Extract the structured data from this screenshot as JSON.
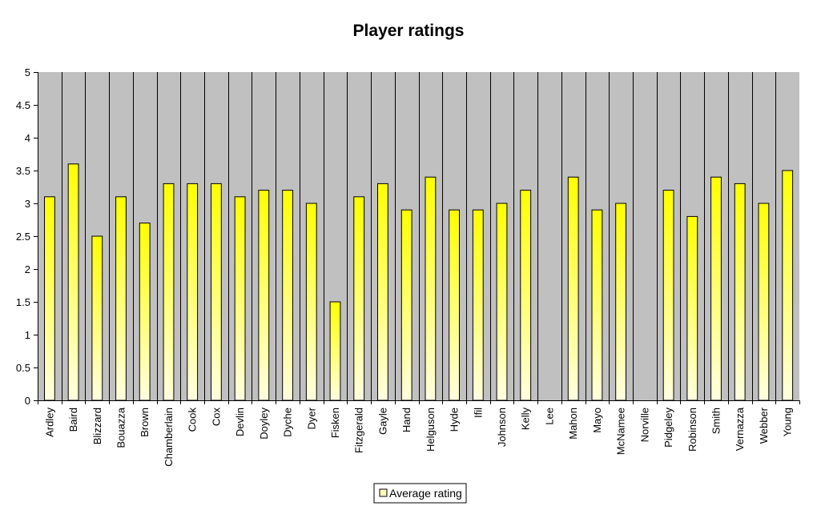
{
  "chart_data": {
    "type": "bar",
    "title": "Player ratings",
    "xlabel": "",
    "ylabel": "",
    "ylim": [
      0,
      5
    ],
    "ytick_step": 0.5,
    "yticks": [
      "0",
      "0.5",
      "1",
      "1.5",
      "2",
      "2.5",
      "3",
      "3.5",
      "4",
      "4.5",
      "5"
    ],
    "grid": false,
    "legend_position": "bottom",
    "categories": [
      "Ardley",
      "Baird",
      "Blizzard",
      "Bouazza",
      "Brown",
      "Chamberlain",
      "Cook",
      "Cox",
      "Devlin",
      "Doyley",
      "Dyche",
      "Dyer",
      "Fisken",
      "Fitzgerald",
      "Gayle",
      "Hand",
      "Helguson",
      "Hyde",
      "Ifil",
      "Johnson",
      "Kelly",
      "Lee",
      "Mahon",
      "Mayo",
      "McNamee",
      "Norville",
      "Pidgeley",
      "Robinson",
      "Smith",
      "Vernazza",
      "Webber",
      "Young"
    ],
    "series": [
      {
        "name": "Average rating",
        "values": [
          3.1,
          3.6,
          2.5,
          3.1,
          2.7,
          3.3,
          3.3,
          3.3,
          3.1,
          3.2,
          3.2,
          3.0,
          1.5,
          3.1,
          3.3,
          2.9,
          3.4,
          2.9,
          2.9,
          3.0,
          3.2,
          null,
          3.4,
          2.9,
          3.0,
          null,
          3.2,
          2.8,
          3.4,
          3.3,
          3.0,
          3.5
        ]
      }
    ],
    "colors": {
      "plot_background": "#c0c0c0",
      "bar_top": "#ffff00",
      "bar_bottom": "#ffffe0",
      "bar_border": "#000000",
      "divider": "#000000"
    }
  }
}
